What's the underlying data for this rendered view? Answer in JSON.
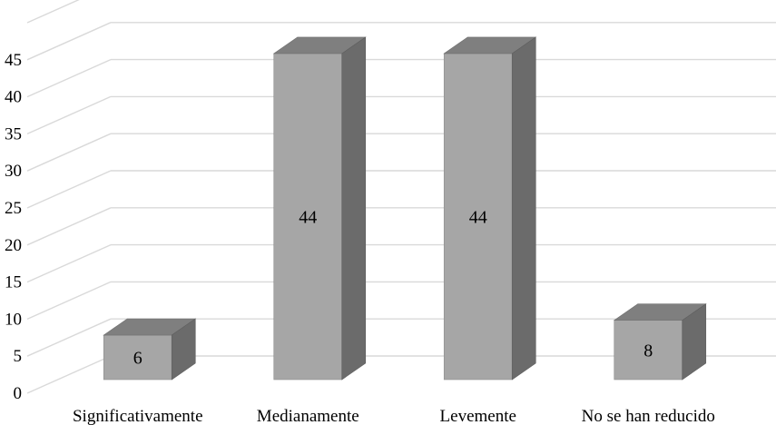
{
  "chart_data": {
    "type": "bar",
    "categories": [
      "Significativamente",
      "Medianamente",
      "Levemente",
      "No se han reducido"
    ],
    "values": [
      6,
      44,
      44,
      8
    ],
    "data_labels": [
      "6",
      "44",
      "44",
      "8"
    ],
    "y_ticks": [
      "0",
      "5",
      "10",
      "15",
      "20",
      "25",
      "30",
      "35",
      "40",
      "45"
    ],
    "ylim": [
      0,
      50
    ],
    "grid": true,
    "style": "3d-column",
    "colors": {
      "front": "#a6a6a6",
      "top": "#7f7f7f",
      "side": "#6b6b6b",
      "grid": "#d9d9d9"
    }
  }
}
